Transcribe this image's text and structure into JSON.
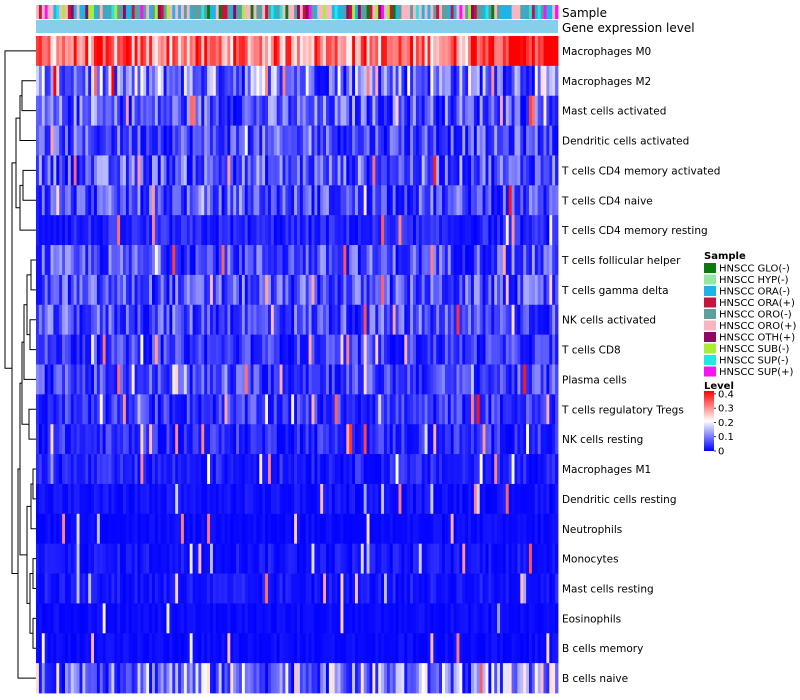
{
  "chart_data": {
    "type": "heatmap",
    "title": "",
    "annotation_rows": [
      "Sample",
      "Gene expression level"
    ],
    "rows": [
      "Macrophages M0",
      "Macrophages M2",
      "Mast cells activated",
      "Dendritic cells activated",
      "T cells CD4 memory activated",
      "T cells CD4 naive",
      "T cells CD4 memory resting",
      "T cells follicular helper",
      "T cells gamma delta",
      "NK cells activated",
      "T cells CD8",
      "Plasma cells",
      "T cells regulatory  Tregs",
      "NK cells resting",
      "Macrophages M1",
      "Dendritic cells resting",
      "Neutrophils",
      "Monocytes",
      "Mast cells resting",
      "Eosinophils",
      "B cells memory",
      "B cells naive"
    ],
    "row_mean_levels": [
      0.32,
      0.12,
      0.08,
      0.07,
      0.08,
      0.07,
      0.03,
      0.07,
      0.07,
      0.07,
      0.05,
      0.06,
      0.05,
      0.04,
      0.03,
      0.015,
      0.01,
      0.02,
      0.02,
      0.01,
      0.01,
      0.12
    ],
    "n_samples": 180,
    "sample_legend": {
      "title": "Sample",
      "entries": [
        {
          "label": "HNSCC GLO(-)",
          "color": "#0a7a10"
        },
        {
          "label": "HNSCC HYP(-)",
          "color": "#94e6a8"
        },
        {
          "label": "HNSCC ORA(-)",
          "color": "#1eb4e8"
        },
        {
          "label": "HNSCC ORA(+)",
          "color": "#c8143c"
        },
        {
          "label": "HNSCC ORO(-)",
          "color": "#5f9ea0"
        },
        {
          "label": "HNSCC ORO(+)",
          "color": "#f7b6c2"
        },
        {
          "label": "HNSCC OTH(+)",
          "color": "#8b0a64"
        },
        {
          "label": "HNSCC SUB(-)",
          "color": "#a8ee38"
        },
        {
          "label": "HNSCC SUP(-)",
          "color": "#20e8e6"
        },
        {
          "label": "HNSCC SUP(+)",
          "color": "#f414f4"
        }
      ]
    },
    "level_legend": {
      "title": "Level",
      "ticks": [
        "0.4",
        "0.3",
        "0.2",
        "0.1",
        "0"
      ],
      "tick_values": [
        0.4,
        0.3,
        0.2,
        0.1,
        0
      ],
      "range": [
        0,
        0.42
      ]
    },
    "colors": {
      "low": "#0000ff",
      "mid": "#ffffff",
      "high": "#ff0000",
      "expression_bar": "#87ceeb"
    }
  }
}
